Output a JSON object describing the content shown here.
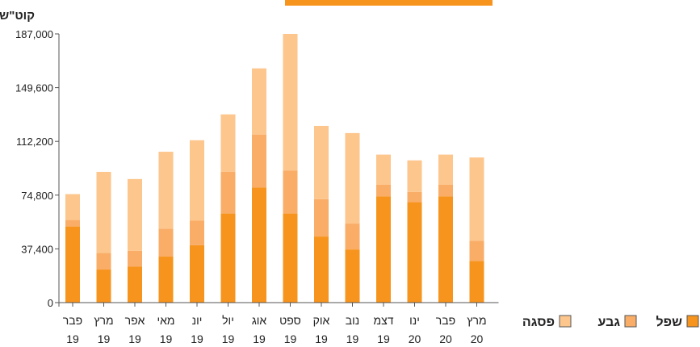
{
  "chart_data": {
    "type": "bar",
    "stacked": true,
    "ylabel": "קוט\"ש",
    "ylim": [
      0,
      187000
    ],
    "yticks": [
      "0",
      "37,400",
      "74,800",
      "112,200",
      "149,600",
      "187,000"
    ],
    "ytick_values": [
      0,
      37400,
      74800,
      112200,
      149600,
      187000
    ],
    "categories": [
      [
        "פבר",
        "19"
      ],
      [
        "מרץ",
        "19"
      ],
      [
        "אפר",
        "19"
      ],
      [
        "מאי",
        "19"
      ],
      [
        "יונ",
        "19"
      ],
      [
        "יול",
        "19"
      ],
      [
        "אוג",
        "19"
      ],
      [
        "ספט",
        "19"
      ],
      [
        "אוק",
        "19"
      ],
      [
        "נוב",
        "19"
      ],
      [
        "דצמ",
        "19"
      ],
      [
        "ינו",
        "20"
      ],
      [
        "פבר",
        "20"
      ],
      [
        "מרץ",
        "20"
      ]
    ],
    "series": [
      {
        "name": "שפל",
        "color": "#f7941d",
        "values": [
          53000,
          23000,
          25000,
          32000,
          40000,
          62000,
          80000,
          62000,
          46000,
          37000,
          74000,
          70000,
          74000,
          29000
        ]
      },
      {
        "name": "גבע",
        "color": "#f9ad67",
        "values": [
          4500,
          11500,
          11000,
          19500,
          17000,
          29000,
          37000,
          30000,
          26000,
          18000,
          8000,
          7000,
          8000,
          14000
        ]
      },
      {
        "name": "פסגה",
        "color": "#fdc68d",
        "values": [
          18000,
          56500,
          50000,
          53500,
          56000,
          40000,
          46000,
          95000,
          51000,
          63000,
          21000,
          22000,
          21000,
          58000
        ]
      }
    ],
    "legend_position": "bottom-right",
    "grid": false
  }
}
